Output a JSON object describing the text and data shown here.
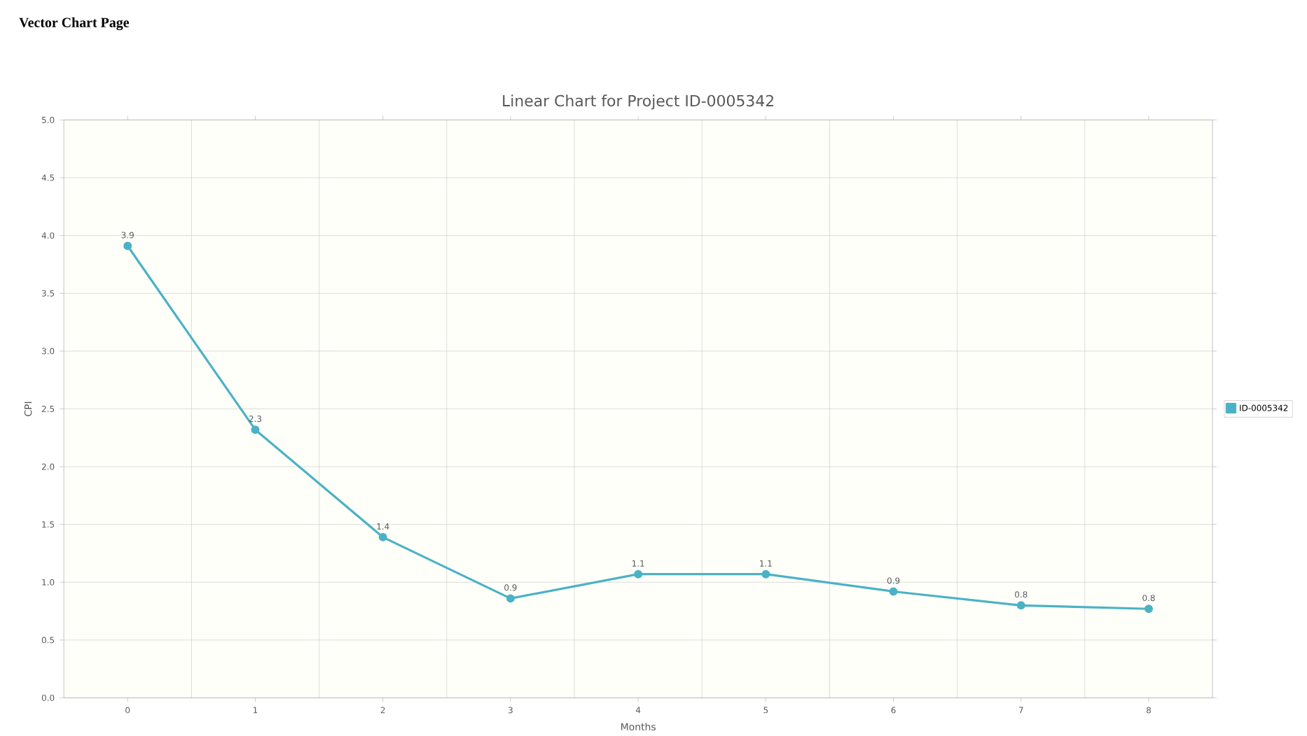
{
  "chart_data": {
    "type": "line",
    "title": "Linear Chart for Project ID-0005342",
    "annotations": [
      "Vector Chart Page"
    ],
    "xlabel": "Months",
    "ylabel": "CPI",
    "categories": [
      "0",
      "1",
      "2",
      "3",
      "4",
      "5",
      "6",
      "7",
      "8"
    ],
    "series": [
      {
        "name": "ID-0005342",
        "color": "#4bb2c5",
        "values": [
          3.91,
          2.32,
          1.39,
          0.86,
          1.07,
          1.07,
          0.92,
          0.8,
          0.77
        ]
      }
    ],
    "value_labels": [
      "3.9",
      "2.3",
      "1.4",
      "0.9",
      "1.1",
      "1.1",
      "0.9",
      "0.8",
      "0.8"
    ],
    "ylim": [
      0,
      5
    ],
    "yticks": [
      {
        "value": 0,
        "label": "0.0"
      },
      {
        "value": 0.5,
        "label": "0.5"
      },
      {
        "value": 1,
        "label": "1.0"
      },
      {
        "value": 1.5,
        "label": "1.5"
      },
      {
        "value": 2,
        "label": "2.0"
      },
      {
        "value": 2.5,
        "label": "2.5"
      },
      {
        "value": 3,
        "label": "3.0"
      },
      {
        "value": 3.5,
        "label": "3.5"
      },
      {
        "value": 4,
        "label": "4.0"
      },
      {
        "value": 4.5,
        "label": "4.5"
      },
      {
        "value": 5,
        "label": "5.0"
      }
    ],
    "grid": true,
    "legend": "right",
    "marker": "circle",
    "line_style": "solid"
  }
}
